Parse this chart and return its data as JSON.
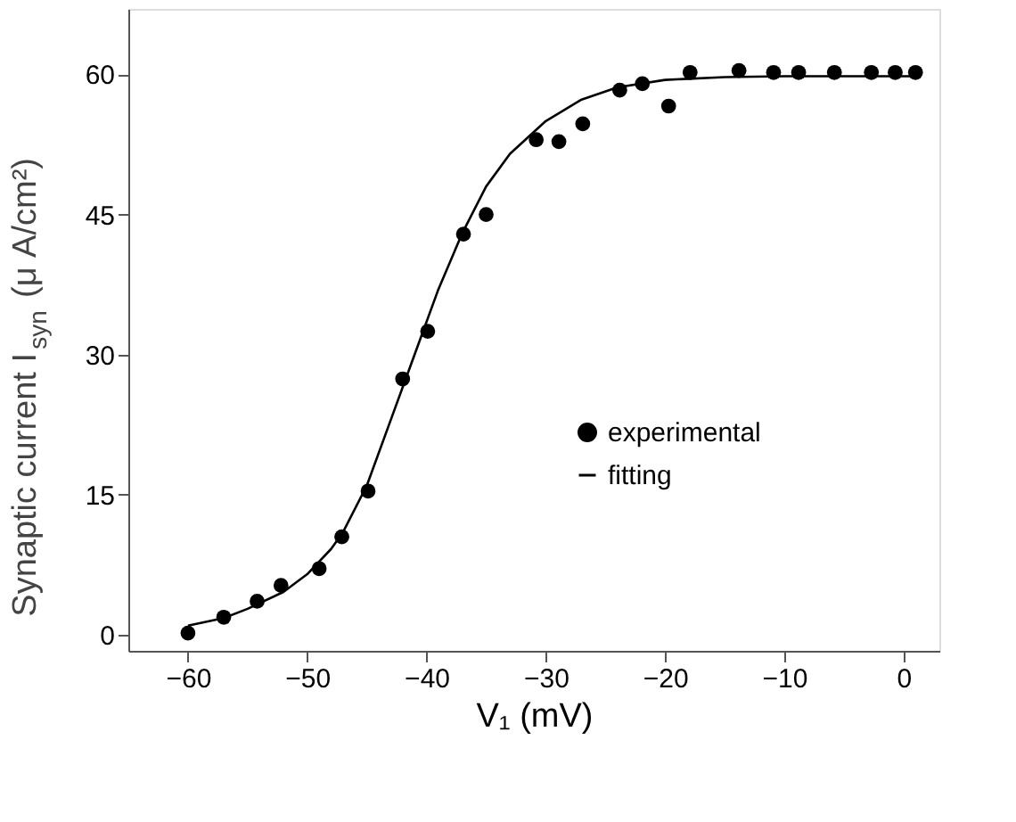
{
  "chart_data": {
    "type": "scatter",
    "xlabel": "V₁ (mV)",
    "ylabel": "Synaptic current I$_{syn}$ (μ A/cm²)",
    "xlim": [
      -65,
      3
    ],
    "ylim": [
      -1.7,
      67
    ],
    "xticks": [
      -60,
      -50,
      -40,
      -30,
      -20,
      -10,
      0
    ],
    "yticks": [
      0,
      15,
      30,
      45,
      60
    ],
    "grid": false,
    "legend": "right",
    "series": [
      {
        "name": "experimental",
        "type": "scatter",
        "color": "#000000",
        "marker": "circle",
        "x": [
          -60,
          -57,
          -54.2,
          -52.2,
          -49,
          -47.1,
          -44.9,
          -42,
          -39.9,
          -36.9,
          -35,
          -30.8,
          -28.9,
          -26.9,
          -23.8,
          -21.9,
          -19.7,
          -17.9,
          -13.8,
          -10.9,
          -8.8,
          -5.8,
          -2.7,
          -0.7,
          1
        ],
        "values": [
          0.2,
          1.9,
          3.6,
          5.3,
          7.1,
          10.5,
          15.4,
          27.4,
          32.5,
          42.9,
          45,
          53,
          52.8,
          54.7,
          58.3,
          59,
          56.6,
          60.2,
          60.4,
          60.2,
          60.2,
          60.2,
          60.2,
          60.2,
          60.2
        ]
      },
      {
        "name": "fitting",
        "type": "line",
        "color": "#000000",
        "line_style": "solid",
        "x": [
          -60,
          -57,
          -55,
          -52,
          -50,
          -48,
          -47,
          -45,
          -43,
          -41,
          -39,
          -37,
          -35,
          -33,
          -30,
          -27,
          -24,
          -20,
          -15,
          -10,
          -5,
          1
        ],
        "values": [
          1.0,
          1.8,
          2.8,
          4.6,
          6.5,
          9.2,
          11,
          16,
          23,
          30,
          37,
          43,
          48,
          51.5,
          55,
          57.3,
          58.6,
          59.4,
          59.7,
          59.8,
          59.8,
          59.8
        ]
      }
    ]
  }
}
